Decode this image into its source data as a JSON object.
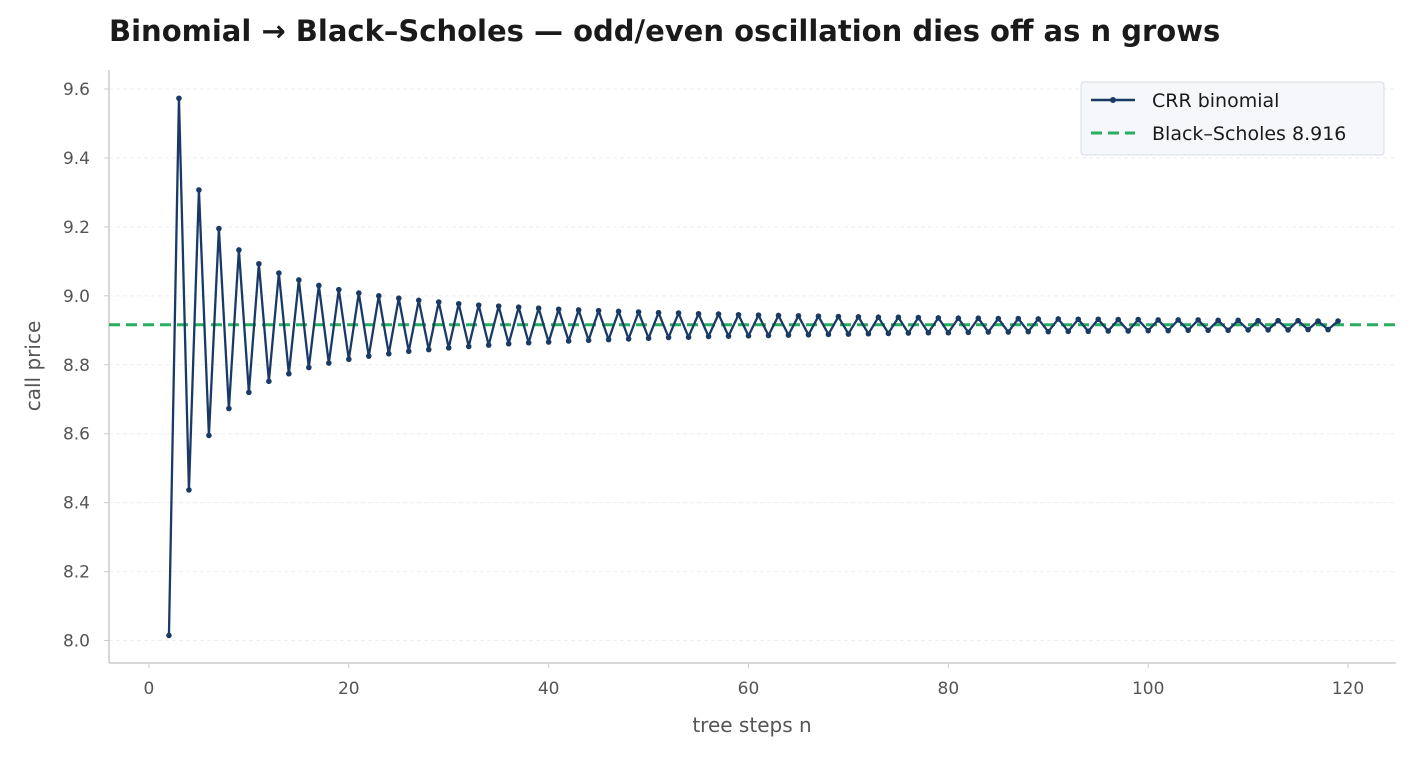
{
  "colors": {
    "binomial": "#1a3a66",
    "black_scholes": "#27ae60",
    "grid": "#eeeeee",
    "axis": "#cccccc",
    "legend_bg": "#f5f7fa"
  },
  "chart_data": {
    "type": "line",
    "title": "Binomial → Black–Scholes — odd/even oscillation dies off as n grows",
    "xlabel": "tree steps n",
    "ylabel": "call price",
    "xlim": [
      -4,
      124.8
    ],
    "ylim": [
      7.935,
      9.655
    ],
    "xticks": [
      0,
      20,
      40,
      60,
      80,
      100,
      120
    ],
    "yticks": [
      8.0,
      8.2,
      8.4,
      8.6,
      8.8,
      9.0,
      9.2,
      9.4,
      9.6
    ],
    "grid": "horizontal",
    "legend_position": "top-right",
    "series": [
      {
        "name": "CRR binomial",
        "style": "line-with-markers",
        "x": [
          2,
          3,
          4,
          5,
          6,
          7,
          8,
          9,
          10,
          11,
          12,
          13,
          14,
          15,
          16,
          17,
          18,
          19,
          20,
          21,
          22,
          23,
          24,
          25,
          26,
          27,
          28,
          29,
          30,
          31,
          32,
          33,
          34,
          35,
          36,
          37,
          38,
          39,
          40,
          41,
          42,
          43,
          44,
          45,
          46,
          47,
          48,
          49,
          50,
          51,
          52,
          53,
          54,
          55,
          56,
          57,
          58,
          59,
          60,
          61,
          62,
          63,
          64,
          65,
          66,
          67,
          68,
          69,
          70,
          71,
          72,
          73,
          74,
          75,
          76,
          77,
          78,
          79,
          80,
          81,
          82,
          83,
          84,
          85,
          86,
          87,
          88,
          89,
          90,
          91,
          92,
          93,
          94,
          95,
          96,
          97,
          98,
          99,
          100,
          101,
          102,
          103,
          104,
          105,
          106,
          107,
          108,
          109,
          110,
          111,
          112,
          113,
          114,
          115,
          116,
          117,
          118,
          119
        ],
        "y": [
          8.015,
          9.573,
          8.437,
          9.307,
          8.595,
          9.195,
          8.673,
          9.133,
          8.72,
          9.093,
          8.752,
          9.066,
          8.774,
          9.046,
          8.792,
          9.03,
          8.805,
          9.018,
          8.816,
          9.008,
          8.825,
          9.0,
          8.832,
          8.993,
          8.839,
          8.987,
          8.844,
          8.982,
          8.849,
          8.977,
          8.853,
          8.973,
          8.857,
          8.97,
          8.861,
          8.967,
          8.864,
          8.964,
          8.866,
          8.961,
          8.869,
          8.959,
          8.871,
          8.957,
          8.873,
          8.955,
          8.875,
          8.953,
          8.877,
          8.951,
          8.879,
          8.95,
          8.88,
          8.948,
          8.882,
          8.947,
          8.883,
          8.945,
          8.884,
          8.944,
          8.885,
          8.943,
          8.886,
          8.942,
          8.887,
          8.941,
          8.888,
          8.94,
          8.889,
          8.939,
          8.89,
          8.938,
          8.891,
          8.938,
          8.892,
          8.937,
          8.893,
          8.936,
          8.893,
          8.935,
          8.894,
          8.935,
          8.895,
          8.934,
          8.895,
          8.934,
          8.896,
          8.933,
          8.896,
          8.933,
          8.897,
          8.932,
          8.897,
          8.932,
          8.898,
          8.931,
          8.898,
          8.931,
          8.899,
          8.93,
          8.899,
          8.93,
          8.9,
          8.93,
          8.9,
          8.929,
          8.9,
          8.929,
          8.901,
          8.928,
          8.901,
          8.928,
          8.901,
          8.928,
          8.902,
          8.927,
          8.902,
          8.927
        ]
      },
      {
        "name": "Black–Scholes 8.916",
        "style": "dashed",
        "y": 8.916
      }
    ]
  }
}
